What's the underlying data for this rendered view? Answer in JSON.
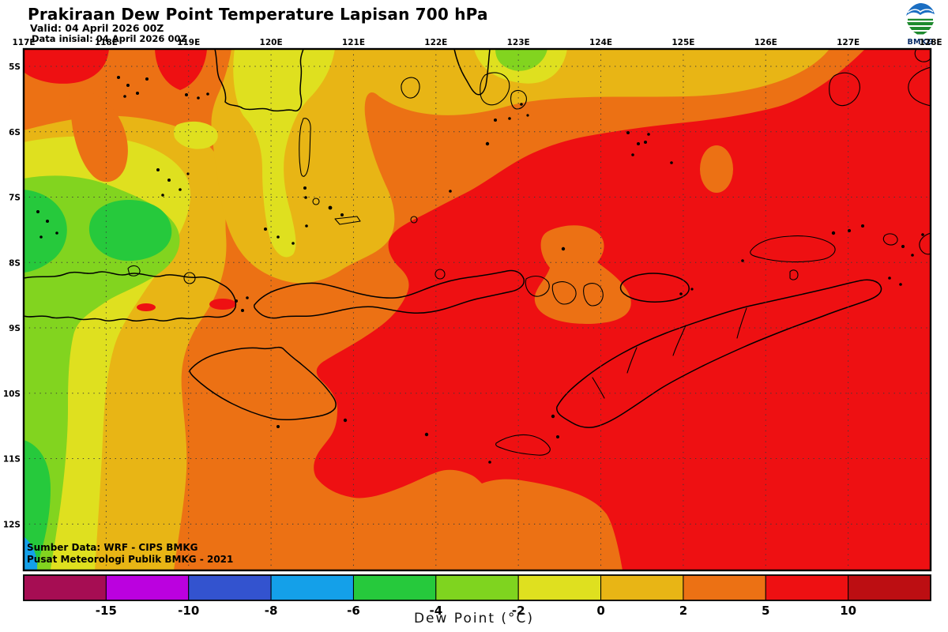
{
  "header": {
    "title": "Prakiraan Dew Point Temperature Lapisan 700 hPa",
    "valid": "Valid: 04 April 2026 00Z",
    "init": "Data inisial: 04 April 2026 00Z"
  },
  "logo": {
    "label": "BMKG"
  },
  "axes": {
    "x_ticks": [
      "117E",
      "118E",
      "119E",
      "120E",
      "121E",
      "122E",
      "123E",
      "124E",
      "125E",
      "126E",
      "127E",
      "128E"
    ],
    "y_ticks": [
      "5S",
      "6S",
      "7S",
      "8S",
      "9S",
      "10S",
      "11S",
      "12S"
    ]
  },
  "source": {
    "line1": "Sumber Data: WRF - CIPS BMKG",
    "line2": "Pusat Meteorologi Publik BMKG - 2021"
  },
  "colorbar": {
    "title": "Dew Point (°C)",
    "tick_labels": [
      "-15",
      "-10",
      "-8",
      "-6",
      "-4",
      "-2",
      "0",
      "2",
      "5",
      "10"
    ],
    "segment_colors": [
      "#A60D53",
      "#BB01DF",
      "#3353CF",
      "#14A0E9",
      "#26C93C",
      "#7FD41F",
      "#DFE01F",
      "#E8B515",
      "#EC7114",
      "#EE1012",
      "#BC0E12"
    ]
  },
  "map_colors": {
    "red": "#EE1012",
    "orange": "#EC7114",
    "gold": "#E8B515",
    "yellow": "#DFE01F",
    "chartreuse": "#82D41F",
    "green": "#26C93C",
    "lightblue": "#14A0E9"
  },
  "chart_data": {
    "type": "heatmap",
    "title": "Prakiraan Dew Point Temperature Lapisan 700 hPa",
    "units": "°C",
    "region": {
      "lon_min": "117E",
      "lon_max": "128E",
      "lat_min": "5S",
      "lat_max": "12S"
    },
    "levels": [
      -15,
      -10,
      -8,
      -6,
      -4,
      -2,
      0,
      2,
      5,
      10
    ],
    "palette": [
      "#A60D53",
      "#BB01DF",
      "#3353CF",
      "#14A0E9",
      "#26C93C",
      "#7FD41F",
      "#DFE01F",
      "#E8B515",
      "#EC7114",
      "#EE1012",
      "#BC0E12"
    ],
    "summary": "Dew point at 700 hPa mostly 2-10°C (orange/red) over the eastern and southern part of the domain (Flores, Timor seas); 0-2°C gold band through the center; yellow to green bands (-6 to 0°C) along the western edge; small pocket of -8 to -6°C at the far southwest corner."
  }
}
